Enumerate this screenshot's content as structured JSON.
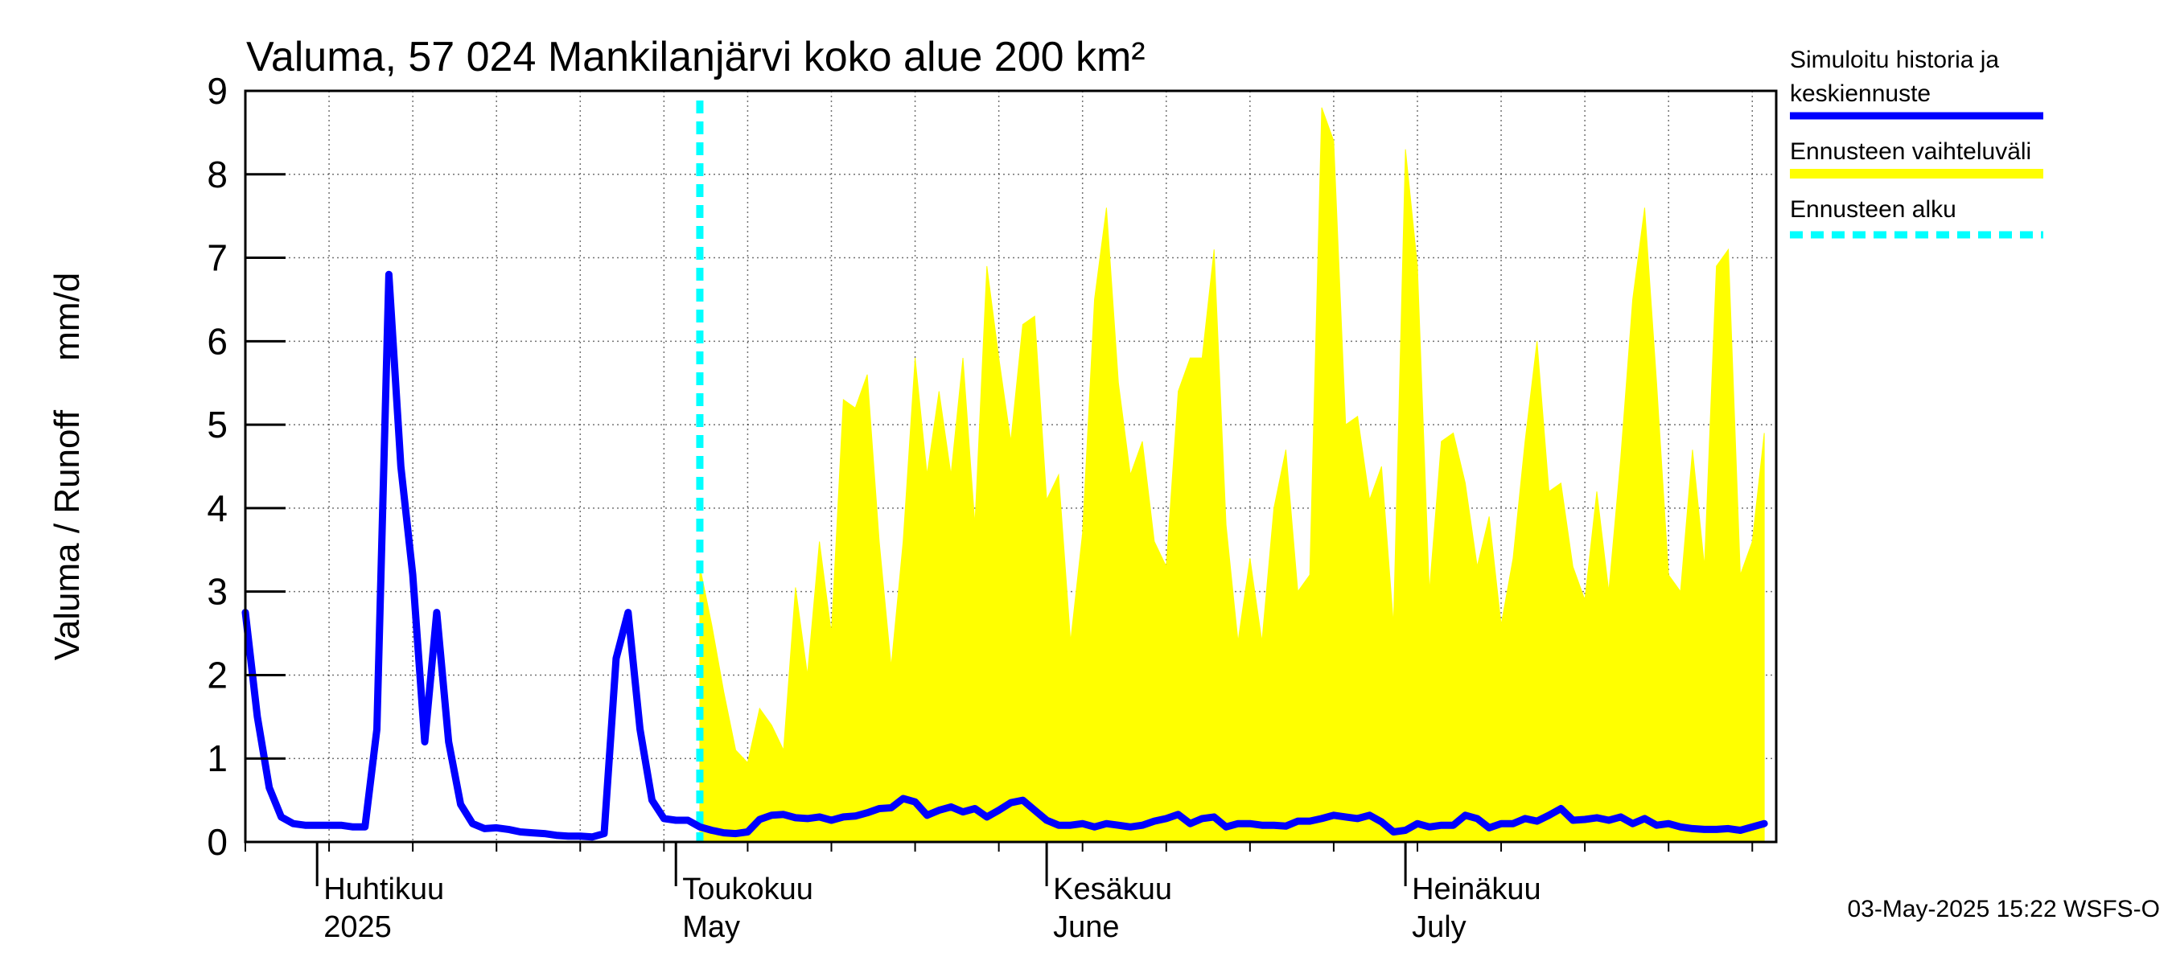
{
  "chart_data": {
    "type": "area",
    "title": "Valuma, 57 024 Mankilanjärvi koko alue 200 km²",
    "ylabel": "Valuma / Runoff     mm/d",
    "ylim": [
      0,
      9
    ],
    "yticks": [
      "0",
      "1",
      "2",
      "3",
      "4",
      "5",
      "6",
      "7",
      "8",
      "9"
    ],
    "xlim": [
      "2025-03-26",
      "2025-08-01"
    ],
    "grid": true,
    "legend_position": "right",
    "x_labels": [
      {
        "date": "2025-04-01",
        "line1": "Huhtikuu",
        "line2": "2025"
      },
      {
        "date": "2025-05-01",
        "line1": "Toukokuu",
        "line2": "May"
      },
      {
        "date": "2025-06-01",
        "line1": "Kesäkuu",
        "line2": "June"
      },
      {
        "date": "2025-07-01",
        "line1": "Heinäkuu",
        "line2": "July"
      }
    ],
    "forecast_start": "2025-05-03",
    "series": [
      {
        "name": "Simuloitu historia ja keskiennuste",
        "color": "#0000ff",
        "points": [
          [
            "2025-03-26",
            2.75
          ],
          [
            "2025-03-27",
            1.5
          ],
          [
            "2025-03-28",
            0.65
          ],
          [
            "2025-03-29",
            0.3
          ],
          [
            "2025-03-30",
            0.22
          ],
          [
            "2025-03-31",
            0.2
          ],
          [
            "2025-04-01",
            0.2
          ],
          [
            "2025-04-02",
            0.2
          ],
          [
            "2025-04-03",
            0.2
          ],
          [
            "2025-04-04",
            0.18
          ],
          [
            "2025-04-05",
            0.18
          ],
          [
            "2025-04-06",
            1.35
          ],
          [
            "2025-04-07",
            6.8
          ],
          [
            "2025-04-08",
            4.5
          ],
          [
            "2025-04-09",
            3.2
          ],
          [
            "2025-04-10",
            1.2
          ],
          [
            "2025-04-11",
            2.75
          ],
          [
            "2025-04-12",
            1.2
          ],
          [
            "2025-04-13",
            0.45
          ],
          [
            "2025-04-14",
            0.22
          ],
          [
            "2025-04-15",
            0.16
          ],
          [
            "2025-04-16",
            0.17
          ],
          [
            "2025-04-17",
            0.15
          ],
          [
            "2025-04-18",
            0.12
          ],
          [
            "2025-04-19",
            0.11
          ],
          [
            "2025-04-20",
            0.1
          ],
          [
            "2025-04-21",
            0.08
          ],
          [
            "2025-04-22",
            0.07
          ],
          [
            "2025-04-23",
            0.07
          ],
          [
            "2025-04-24",
            0.06
          ],
          [
            "2025-04-25",
            0.1
          ],
          [
            "2025-04-26",
            2.2
          ],
          [
            "2025-04-27",
            2.75
          ],
          [
            "2025-04-28",
            1.35
          ],
          [
            "2025-04-29",
            0.5
          ],
          [
            "2025-04-30",
            0.28
          ],
          [
            "2025-05-01",
            0.26
          ],
          [
            "2025-05-02",
            0.26
          ],
          [
            "2025-05-03",
            0.18
          ],
          [
            "2025-05-04",
            0.14
          ],
          [
            "2025-05-05",
            0.11
          ],
          [
            "2025-05-06",
            0.1
          ],
          [
            "2025-05-07",
            0.12
          ],
          [
            "2025-05-08",
            0.27
          ],
          [
            "2025-05-09",
            0.32
          ],
          [
            "2025-05-10",
            0.33
          ],
          [
            "2025-05-11",
            0.29
          ],
          [
            "2025-05-12",
            0.28
          ],
          [
            "2025-05-13",
            0.3
          ],
          [
            "2025-05-14",
            0.26
          ],
          [
            "2025-05-15",
            0.3
          ],
          [
            "2025-05-16",
            0.31
          ],
          [
            "2025-05-17",
            0.35
          ],
          [
            "2025-05-18",
            0.4
          ],
          [
            "2025-05-19",
            0.41
          ],
          [
            "2025-05-20",
            0.52
          ],
          [
            "2025-05-21",
            0.48
          ],
          [
            "2025-05-22",
            0.32
          ],
          [
            "2025-05-23",
            0.38
          ],
          [
            "2025-05-24",
            0.42
          ],
          [
            "2025-05-25",
            0.36
          ],
          [
            "2025-05-26",
            0.4
          ],
          [
            "2025-05-27",
            0.3
          ],
          [
            "2025-05-28",
            0.38
          ],
          [
            "2025-05-29",
            0.47
          ],
          [
            "2025-05-30",
            0.5
          ],
          [
            "2025-05-31",
            0.38
          ],
          [
            "2025-06-01",
            0.26
          ],
          [
            "2025-06-02",
            0.2
          ],
          [
            "2025-06-03",
            0.2
          ],
          [
            "2025-06-04",
            0.22
          ],
          [
            "2025-06-05",
            0.18
          ],
          [
            "2025-06-06",
            0.22
          ],
          [
            "2025-06-07",
            0.2
          ],
          [
            "2025-06-08",
            0.18
          ],
          [
            "2025-06-09",
            0.2
          ],
          [
            "2025-06-10",
            0.25
          ],
          [
            "2025-06-11",
            0.28
          ],
          [
            "2025-06-12",
            0.33
          ],
          [
            "2025-06-13",
            0.22
          ],
          [
            "2025-06-14",
            0.28
          ],
          [
            "2025-06-15",
            0.3
          ],
          [
            "2025-06-16",
            0.18
          ],
          [
            "2025-06-17",
            0.22
          ],
          [
            "2025-06-18",
            0.22
          ],
          [
            "2025-06-19",
            0.2
          ],
          [
            "2025-06-20",
            0.2
          ],
          [
            "2025-06-21",
            0.19
          ],
          [
            "2025-06-22",
            0.25
          ],
          [
            "2025-06-23",
            0.25
          ],
          [
            "2025-06-24",
            0.28
          ],
          [
            "2025-06-25",
            0.32
          ],
          [
            "2025-06-26",
            0.3
          ],
          [
            "2025-06-27",
            0.28
          ],
          [
            "2025-06-28",
            0.32
          ],
          [
            "2025-06-29",
            0.24
          ],
          [
            "2025-06-30",
            0.12
          ],
          [
            "2025-07-01",
            0.14
          ],
          [
            "2025-07-02",
            0.22
          ],
          [
            "2025-07-03",
            0.18
          ],
          [
            "2025-07-04",
            0.2
          ],
          [
            "2025-07-05",
            0.2
          ],
          [
            "2025-07-06",
            0.32
          ],
          [
            "2025-07-07",
            0.28
          ],
          [
            "2025-07-08",
            0.17
          ],
          [
            "2025-07-09",
            0.22
          ],
          [
            "2025-07-10",
            0.22
          ],
          [
            "2025-07-11",
            0.28
          ],
          [
            "2025-07-12",
            0.25
          ],
          [
            "2025-07-13",
            0.32
          ],
          [
            "2025-07-14",
            0.4
          ],
          [
            "2025-07-15",
            0.26
          ],
          [
            "2025-07-16",
            0.27
          ],
          [
            "2025-07-17",
            0.29
          ],
          [
            "2025-07-18",
            0.26
          ],
          [
            "2025-07-19",
            0.3
          ],
          [
            "2025-07-20",
            0.22
          ],
          [
            "2025-07-21",
            0.28
          ],
          [
            "2025-07-22",
            0.2
          ],
          [
            "2025-07-23",
            0.22
          ],
          [
            "2025-07-24",
            0.18
          ],
          [
            "2025-07-25",
            0.16
          ],
          [
            "2025-07-26",
            0.15
          ],
          [
            "2025-07-27",
            0.15
          ],
          [
            "2025-07-28",
            0.16
          ],
          [
            "2025-07-29",
            0.14
          ],
          [
            "2025-07-30",
            0.18
          ],
          [
            "2025-07-31",
            0.22
          ]
        ]
      },
      {
        "name": "Ennusteen vaihteluväli",
        "color": "#ffff00",
        "band_upper": [
          [
            "2025-05-03",
            3.3
          ],
          [
            "2025-05-04",
            2.6
          ],
          [
            "2025-05-05",
            1.8
          ],
          [
            "2025-05-06",
            1.1
          ],
          [
            "2025-05-07",
            0.95
          ],
          [
            "2025-05-08",
            1.6
          ],
          [
            "2025-05-09",
            1.4
          ],
          [
            "2025-05-10",
            1.1
          ],
          [
            "2025-05-11",
            3.05
          ],
          [
            "2025-05-12",
            2.0
          ],
          [
            "2025-05-13",
            3.6
          ],
          [
            "2025-05-14",
            2.5
          ],
          [
            "2025-05-15",
            5.3
          ],
          [
            "2025-05-16",
            5.2
          ],
          [
            "2025-05-17",
            5.6
          ],
          [
            "2025-05-18",
            3.6
          ],
          [
            "2025-05-19",
            2.1
          ],
          [
            "2025-05-20",
            3.6
          ],
          [
            "2025-05-21",
            5.8
          ],
          [
            "2025-05-22",
            4.4
          ],
          [
            "2025-05-23",
            5.4
          ],
          [
            "2025-05-24",
            4.4
          ],
          [
            "2025-05-25",
            5.8
          ],
          [
            "2025-05-26",
            3.8
          ],
          [
            "2025-05-27",
            6.9
          ],
          [
            "2025-05-28",
            5.8
          ],
          [
            "2025-05-29",
            4.8
          ],
          [
            "2025-05-30",
            6.2
          ],
          [
            "2025-05-31",
            6.3
          ],
          [
            "2025-06-01",
            4.1
          ],
          [
            "2025-06-02",
            4.4
          ],
          [
            "2025-06-03",
            2.4
          ],
          [
            "2025-06-04",
            3.7
          ],
          [
            "2025-06-05",
            6.5
          ],
          [
            "2025-06-06",
            7.6
          ],
          [
            "2025-06-07",
            5.5
          ],
          [
            "2025-06-08",
            4.4
          ],
          [
            "2025-06-09",
            4.8
          ],
          [
            "2025-06-10",
            3.6
          ],
          [
            "2025-06-11",
            3.3
          ],
          [
            "2025-06-12",
            5.4
          ],
          [
            "2025-06-13",
            5.8
          ],
          [
            "2025-06-14",
            5.8
          ],
          [
            "2025-06-15",
            7.1
          ],
          [
            "2025-06-16",
            3.8
          ],
          [
            "2025-06-17",
            2.4
          ],
          [
            "2025-06-18",
            3.4
          ],
          [
            "2025-06-19",
            2.4
          ],
          [
            "2025-06-20",
            4.0
          ],
          [
            "2025-06-21",
            4.7
          ],
          [
            "2025-06-22",
            3.0
          ],
          [
            "2025-06-23",
            3.2
          ],
          [
            "2025-06-24",
            8.8
          ],
          [
            "2025-06-25",
            8.4
          ],
          [
            "2025-06-26",
            5.0
          ],
          [
            "2025-06-27",
            5.1
          ],
          [
            "2025-06-28",
            4.1
          ],
          [
            "2025-06-29",
            4.5
          ],
          [
            "2025-06-30",
            2.6
          ],
          [
            "2025-07-01",
            8.3
          ],
          [
            "2025-07-02",
            6.9
          ],
          [
            "2025-07-03",
            3.0
          ],
          [
            "2025-07-04",
            4.8
          ],
          [
            "2025-07-05",
            4.9
          ],
          [
            "2025-07-06",
            4.3
          ],
          [
            "2025-07-07",
            3.3
          ],
          [
            "2025-07-08",
            3.9
          ],
          [
            "2025-07-09",
            2.6
          ],
          [
            "2025-07-10",
            3.4
          ],
          [
            "2025-07-11",
            4.8
          ],
          [
            "2025-07-12",
            6.0
          ],
          [
            "2025-07-13",
            4.2
          ],
          [
            "2025-07-14",
            4.3
          ],
          [
            "2025-07-15",
            3.3
          ],
          [
            "2025-07-16",
            2.9
          ],
          [
            "2025-07-17",
            4.2
          ],
          [
            "2025-07-18",
            3.0
          ],
          [
            "2025-07-19",
            4.6
          ],
          [
            "2025-07-20",
            6.5
          ],
          [
            "2025-07-21",
            7.6
          ],
          [
            "2025-07-22",
            5.5
          ],
          [
            "2025-07-23",
            3.2
          ],
          [
            "2025-07-24",
            3.0
          ],
          [
            "2025-07-25",
            4.7
          ],
          [
            "2025-07-26",
            3.3
          ],
          [
            "2025-07-27",
            6.9
          ],
          [
            "2025-07-28",
            7.1
          ],
          [
            "2025-07-29",
            3.2
          ],
          [
            "2025-07-30",
            3.6
          ],
          [
            "2025-07-31",
            4.9
          ]
        ],
        "band_lower": [
          [
            "2025-05-03",
            0.02
          ],
          [
            "2025-05-31",
            0.0
          ],
          [
            "2025-07-31",
            0.0
          ]
        ]
      },
      {
        "name": "Ennusteen alku",
        "color": "#00ffff"
      }
    ]
  },
  "footer": "03-May-2025 15:22 WSFS-O"
}
